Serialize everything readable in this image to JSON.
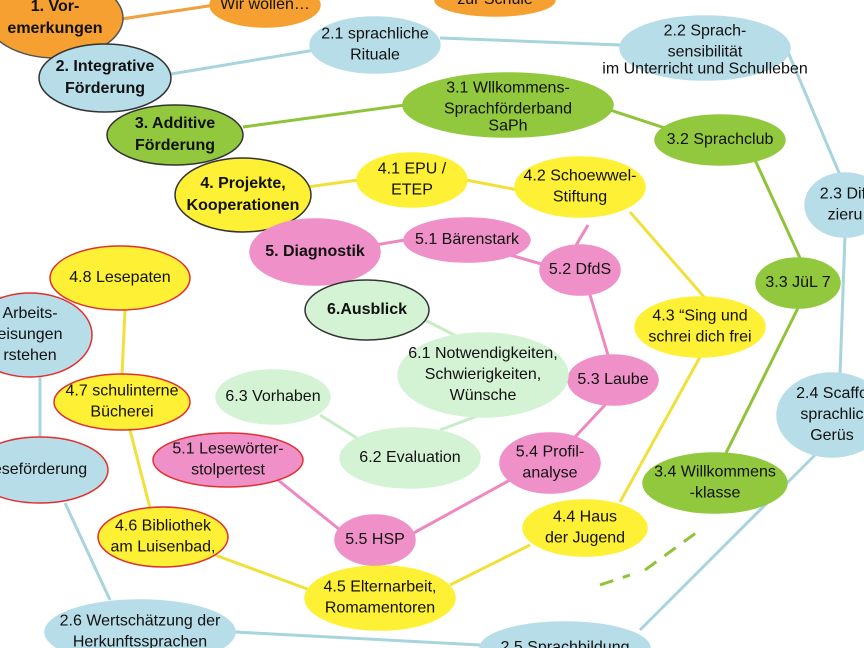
{
  "nodes": [
    {
      "lines": [
        "1.   Vor-",
        "emerkungen"
      ]
    },
    {
      "lines": [
        "Wir wollen…"
      ]
    },
    {
      "lines": [
        "zur Schule"
      ]
    },
    {
      "lines": [
        "2. Integrative",
        "Förderung"
      ]
    },
    {
      "lines": [
        "2.1 sprachliche",
        "Rituale"
      ]
    },
    {
      "lines": [
        "2.2 Sprach-",
        "sensibilität"
      ],
      "note": "im Unterricht und Schulleben"
    },
    {
      "lines": [
        "2.3 Diff",
        "zieru"
      ]
    },
    {
      "lines": [
        "3. Additive",
        "Förderung"
      ]
    },
    {
      "lines": [
        "3.1 Wllkommens-",
        "Sprachförderband"
      ],
      "note": "SaPh"
    },
    {
      "lines": [
        "3.2 Sprachclub"
      ]
    },
    {
      "lines": [
        "3.3 JüL 7"
      ]
    },
    {
      "lines": [
        "3.4 Willkommens",
        "-klasse"
      ]
    },
    {
      "lines": [
        "4. Projekte,",
        "Kooperationen"
      ]
    },
    {
      "lines": [
        "4.1 EPU /",
        "ETEP"
      ]
    },
    {
      "lines": [
        "4.2 Schoewwel-",
        "Stiftung"
      ]
    },
    {
      "lines": [
        "4.3 “Sing und",
        "schrei dich frei"
      ]
    },
    {
      "lines": [
        "4.4 Haus",
        "der Jugend"
      ]
    },
    {
      "lines": [
        "4.5 Elternarbeit,",
        "Romamentoren"
      ]
    },
    {
      "lines": [
        "4.6 Bibliothek",
        "am Luisenbad,"
      ]
    },
    {
      "lines": [
        "4.7 schulinterne",
        "Bücherei"
      ]
    },
    {
      "lines": [
        "4.8 Lesepaten"
      ]
    },
    {
      "lines": [
        "5. Diagnostik"
      ]
    },
    {
      "lines": [
        "5.1 Bärenstark"
      ]
    },
    {
      "lines": [
        "5.2 DfdS"
      ]
    },
    {
      "lines": [
        "5.3 Laube"
      ]
    },
    {
      "lines": [
        "5.4 Profil-",
        "analyse"
      ]
    },
    {
      "lines": [
        "5.5 HSP"
      ]
    },
    {
      "lines": [
        "5.1 Lesewörter-",
        "stolpertest"
      ]
    },
    {
      "lines": [
        "6.Ausblick"
      ]
    },
    {
      "lines": [
        "6.1 Notwendigkeiten,",
        "Schwierigkeiten,",
        "Wünsche"
      ]
    },
    {
      "lines": [
        "6.3 Vorhaben"
      ]
    },
    {
      "lines": [
        "6.2 Evaluation"
      ]
    },
    {
      "lines": [
        "Arbeits-",
        "eisungen",
        "rstehen"
      ]
    },
    {
      "lines": [
        "eseförderung"
      ]
    },
    {
      "lines": [
        "2.4 Scaffo",
        "sprachlic",
        "Gerüs"
      ]
    },
    {
      "lines": [
        "2.5 Sprachbildung"
      ]
    },
    {
      "lines": [
        "2.6 Wertschätzung der",
        "Herkunftssprachen"
      ]
    }
  ]
}
